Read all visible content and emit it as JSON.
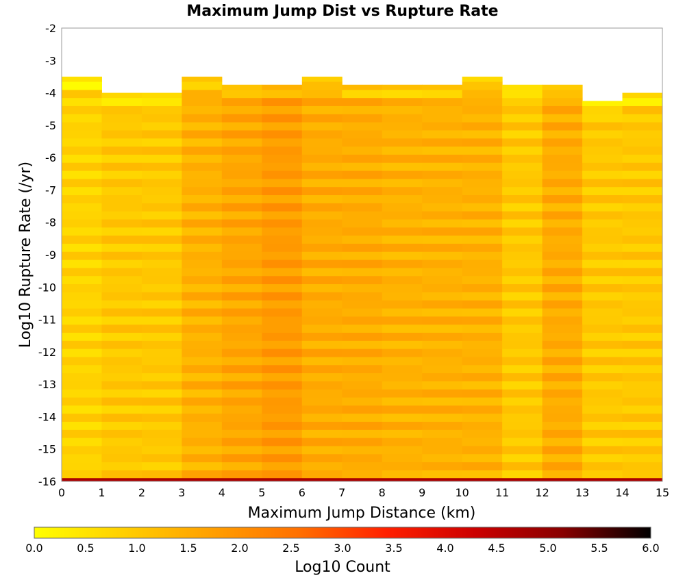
{
  "chart_data": {
    "type": "heatmap",
    "title": "Maximum Jump Dist vs Rupture Rate",
    "xlabel": "Maximum Jump Distance (km)",
    "ylabel": "Log10 Rupture Rate (/yr)",
    "colorbar_label": "Log10 Count",
    "xlim": [
      0,
      15
    ],
    "ylim": [
      -16,
      -2
    ],
    "x_ticks": [
      "0",
      "1",
      "2",
      "3",
      "4",
      "5",
      "6",
      "7",
      "8",
      "9",
      "10",
      "11",
      "12",
      "13",
      "14",
      "15"
    ],
    "y_ticks": [
      "-2",
      "-3",
      "-4",
      "-5",
      "-6",
      "-7",
      "-8",
      "-9",
      "-10",
      "-11",
      "-12",
      "-13",
      "-14",
      "-15",
      "-16"
    ],
    "colorbar_range": [
      0.0,
      6.0
    ],
    "colorbar_ticks": [
      "0.0",
      "0.5",
      "1.0",
      "1.5",
      "2.0",
      "2.5",
      "3.0",
      "3.5",
      "4.0",
      "4.5",
      "5.0",
      "5.5",
      "6.0"
    ],
    "colormap": [
      "#ffff00",
      "#ffd000",
      "#ffa000",
      "#ff7000",
      "#ff2000",
      "#cc0000",
      "#880000",
      "#000000"
    ],
    "x_bins_start": [
      0,
      1,
      2,
      3,
      4,
      5,
      6,
      7,
      8,
      9,
      10,
      11,
      12,
      13,
      14
    ],
    "x_bin_width": 1,
    "y_bin_width": 0.25,
    "column_tops": [
      -3.5,
      -4.0,
      -4.0,
      -3.5,
      -3.75,
      -3.75,
      -3.5,
      -3.75,
      -3.75,
      -3.75,
      -3.5,
      -3.75,
      -3.75,
      -4.25,
      -4.0
    ],
    "column_levels": [
      0.8,
      1.0,
      1.0,
      1.4,
      1.6,
      1.8,
      1.5,
      1.5,
      1.4,
      1.4,
      1.4,
      1.0,
      1.5,
      1.0,
      1.0
    ],
    "bottom_row": {
      "y_start": -16.0,
      "y_end": -15.9,
      "value": 4.7
    }
  }
}
